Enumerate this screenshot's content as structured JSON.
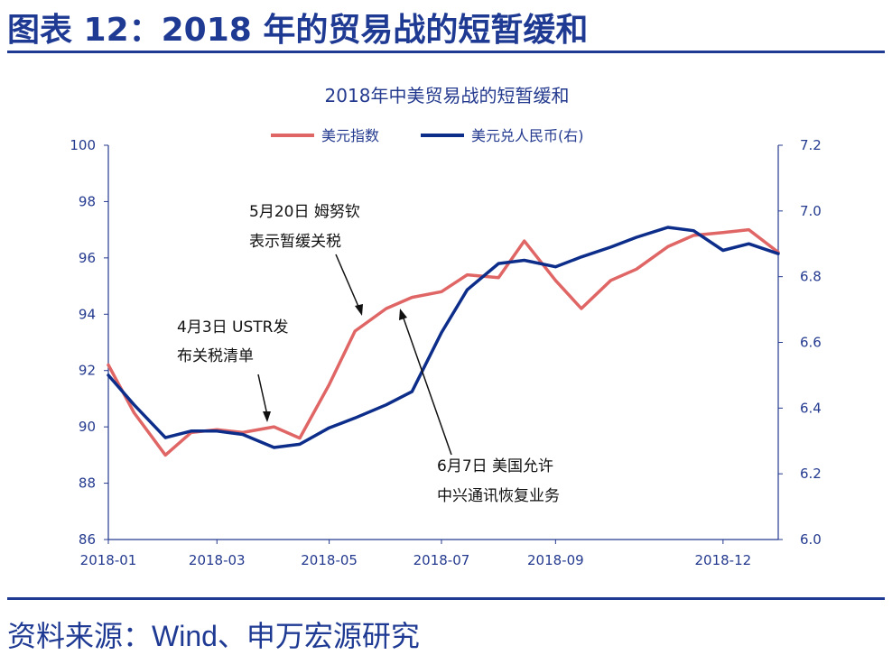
{
  "figure_title": "图表 12：2018 年的贸易战的短暂缓和",
  "source": "资料来源：Wind、申万宏源研究",
  "chart_data": {
    "type": "line",
    "title": "2018年中美贸易战的短暂缓和",
    "legend": [
      "美元指数",
      "美元兑人民币(右)"
    ],
    "legend_position": "top-center",
    "colors": {
      "usd_index": "#e06666",
      "usdcny": "#0d2d8a",
      "text": "#243a8f"
    },
    "x_ticks": [
      "2018-01",
      "2018-03",
      "2018-05",
      "2018-07",
      "2018-09",
      "2018-12"
    ],
    "left_axis": {
      "ticks": [
        "100",
        "98",
        "96",
        "94",
        "92",
        "90",
        "88",
        "86"
      ],
      "ylim": [
        86,
        100
      ]
    },
    "right_axis": {
      "ticks": [
        "7.2",
        "7.0",
        "6.8",
        "6.6",
        "6.4",
        "6.2",
        "6.0"
      ],
      "ylim": [
        6.0,
        7.2
      ]
    },
    "grid": false,
    "series": [
      {
        "name": "美元指数",
        "axis": "left",
        "x": [
          "2018-01-01",
          "2018-01-15",
          "2018-02-01",
          "2018-02-15",
          "2018-03-01",
          "2018-03-15",
          "2018-04-01",
          "2018-04-15",
          "2018-05-01",
          "2018-05-15",
          "2018-06-01",
          "2018-06-15",
          "2018-07-01",
          "2018-07-15",
          "2018-08-01",
          "2018-08-15",
          "2018-09-01",
          "2018-09-15",
          "2018-10-01",
          "2018-10-15",
          "2018-11-01",
          "2018-11-15",
          "2018-12-01",
          "2018-12-15",
          "2018-12-31"
        ],
        "values": [
          92.2,
          90.5,
          89.0,
          89.8,
          89.9,
          89.8,
          90.0,
          89.6,
          91.5,
          93.4,
          94.2,
          94.6,
          94.8,
          95.4,
          95.3,
          96.6,
          95.2,
          94.2,
          95.2,
          95.6,
          96.4,
          96.8,
          96.9,
          97.0,
          96.2
        ]
      },
      {
        "name": "美元兑人民币(右)",
        "axis": "right",
        "x": [
          "2018-01-01",
          "2018-01-15",
          "2018-02-01",
          "2018-02-15",
          "2018-03-01",
          "2018-03-15",
          "2018-04-01",
          "2018-04-15",
          "2018-05-01",
          "2018-05-15",
          "2018-06-01",
          "2018-06-15",
          "2018-07-01",
          "2018-07-15",
          "2018-08-01",
          "2018-08-15",
          "2018-09-01",
          "2018-09-15",
          "2018-10-01",
          "2018-10-15",
          "2018-11-01",
          "2018-11-15",
          "2018-12-01",
          "2018-12-15",
          "2018-12-31"
        ],
        "values": [
          6.5,
          6.41,
          6.31,
          6.33,
          6.33,
          6.32,
          6.28,
          6.29,
          6.34,
          6.37,
          6.41,
          6.45,
          6.63,
          6.76,
          6.84,
          6.85,
          6.83,
          6.86,
          6.89,
          6.92,
          6.95,
          6.94,
          6.88,
          6.9,
          6.87
        ]
      }
    ],
    "annotations": [
      {
        "lines": [
          "4月3日 USTR发",
          "布关税清单"
        ]
      },
      {
        "lines": [
          "5月20日 姆努钦",
          "表示暂缓关税"
        ]
      },
      {
        "lines": [
          "6月7日 美国允许",
          "中兴通讯恢复业务"
        ]
      }
    ]
  }
}
